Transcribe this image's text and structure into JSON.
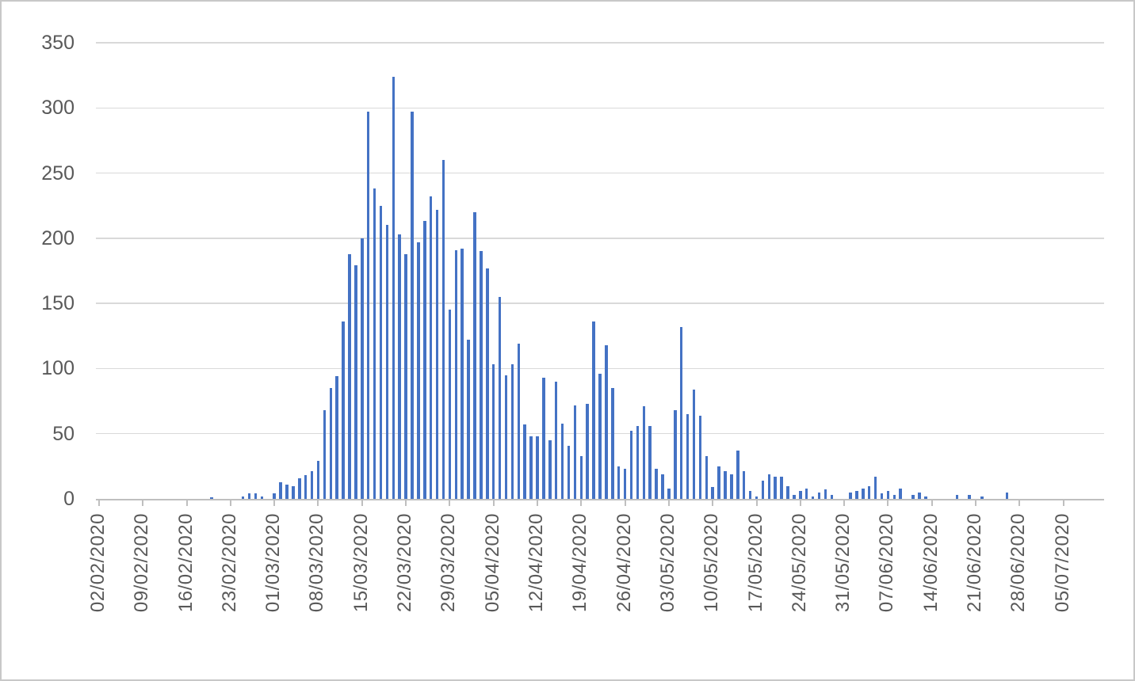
{
  "chart_data": {
    "type": "bar",
    "title": "",
    "xlabel": "",
    "ylabel": "",
    "legend": "none",
    "gridlines": "horizontal",
    "start_date": "02/02/2020",
    "date_step": "daily",
    "x_tick_interval_days": 7,
    "x_tick_labels": [
      "02/02/2020",
      "09/02/2020",
      "16/02/2020",
      "23/02/2020",
      "01/03/2020",
      "08/03/2020",
      "15/03/2020",
      "22/03/2020",
      "29/03/2020",
      "05/04/2020",
      "12/04/2020",
      "19/04/2020",
      "26/04/2020",
      "03/05/2020",
      "10/05/2020",
      "17/05/2020",
      "24/05/2020",
      "31/05/2020",
      "07/06/2020",
      "14/06/2020",
      "21/06/2020",
      "28/06/2020",
      "05/07/2020"
    ],
    "y_axis": {
      "min": 0,
      "max": 350,
      "step": 50,
      "tick_labels": [
        "0",
        "50",
        "100",
        "150",
        "200",
        "250",
        "300",
        "350"
      ]
    },
    "values": [
      0,
      0,
      0,
      0,
      0,
      0,
      0,
      0,
      0,
      0,
      0,
      0,
      0,
      0,
      0,
      0,
      0,
      0,
      1,
      0,
      0,
      0,
      0,
      2,
      4,
      4,
      2,
      0,
      4,
      13,
      11,
      10,
      16,
      18,
      21,
      29,
      68,
      85,
      94,
      136,
      188,
      179,
      200,
      297,
      238,
      225,
      210,
      324,
      203,
      188,
      297,
      197,
      213,
      232,
      222,
      260,
      145,
      191,
      192,
      122,
      220,
      190,
      177,
      103,
      155,
      95,
      103,
      119,
      57,
      48,
      48,
      93,
      45,
      90,
      58,
      41,
      72,
      33,
      73,
      136,
      96,
      118,
      85,
      25,
      23,
      52,
      56,
      71,
      56,
      23,
      19,
      8,
      68,
      132,
      65,
      84,
      64,
      33,
      9,
      25,
      21,
      19,
      37,
      21,
      6,
      2,
      14,
      19,
      17,
      17,
      10,
      3,
      6,
      8,
      2,
      5,
      7,
      3,
      0,
      0,
      5,
      6,
      8,
      10,
      17,
      4,
      6,
      3,
      8,
      0,
      3,
      5,
      2,
      0,
      0,
      0,
      0,
      3,
      0,
      3,
      0,
      2,
      0,
      0,
      0,
      5,
      0,
      0,
      0,
      0,
      0,
      0,
      0,
      0,
      0,
      0,
      0,
      0,
      0,
      0,
      0
    ],
    "colors": {
      "bar": "#4472C4",
      "gridline": "#D9D9D9",
      "axis_line": "#BFBFBF",
      "tick": "#BFBFBF",
      "label_text": "#595959",
      "background": "#FFFFFF",
      "border": "#C8C8C8"
    }
  }
}
